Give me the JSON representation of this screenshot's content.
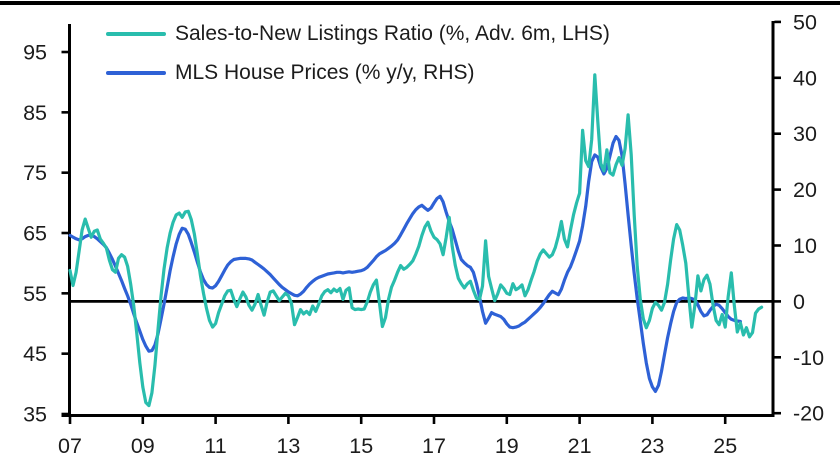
{
  "chart_data": {
    "type": "line",
    "legend_position": "top-left-inside",
    "grid": false,
    "baseline_rhs": 0,
    "x_axis": {
      "tick_years": [
        2007,
        2009,
        2011,
        2013,
        2015,
        2017,
        2019,
        2021,
        2023,
        2025
      ],
      "tick_labels": [
        "07",
        "09",
        "11",
        "13",
        "15",
        "17",
        "19",
        "21",
        "23",
        "25"
      ],
      "range": [
        2006.9,
        2026.35
      ]
    },
    "left_axis": {
      "ticks": [
        35,
        45,
        55,
        65,
        75,
        85,
        95
      ],
      "tick_labels": [
        "35",
        "45",
        "55",
        "65",
        "75",
        "85",
        "95"
      ]
    },
    "right_axis": {
      "ticks": [
        -20,
        -10,
        0,
        10,
        20,
        30,
        40,
        50
      ],
      "tick_labels": [
        "-20",
        "-10",
        "0",
        "10",
        "20",
        "30",
        "40",
        "50"
      ]
    },
    "series": [
      {
        "name": "MLS House Prices (% y/y, RHS)",
        "axis": "right",
        "color": "#2e61d6",
        "start_year": 2007.0,
        "points_per_year": 12,
        "values": [
          11.8,
          11.5,
          11.2,
          11.0,
          11.2,
          11.6,
          11.8,
          11.9,
          11.6,
          11.2,
          10.7,
          10.2,
          9.6,
          8.6,
          7.5,
          6.3,
          5.0,
          3.7,
          2.3,
          1.0,
          -0.5,
          -2.2,
          -3.8,
          -5.3,
          -6.8,
          -8.0,
          -8.9,
          -8.8,
          -7.8,
          -5.8,
          -3.2,
          -0.5,
          2.5,
          5.5,
          8.0,
          10.3,
          12.0,
          13.1,
          12.9,
          12.0,
          10.5,
          8.8,
          7.0,
          5.3,
          3.9,
          3.0,
          2.5,
          2.4,
          2.8,
          3.6,
          4.6,
          5.6,
          6.5,
          7.1,
          7.5,
          7.6,
          7.7,
          7.7,
          7.7,
          7.6,
          7.4,
          7.0,
          6.6,
          6.2,
          5.8,
          5.3,
          4.8,
          4.2,
          3.6,
          3.0,
          2.5,
          2.1,
          1.7,
          1.4,
          1.1,
          1.0,
          1.3,
          1.8,
          2.5,
          3.1,
          3.6,
          4.0,
          4.3,
          4.5,
          4.7,
          4.9,
          5.0,
          5.1,
          5.2,
          5.2,
          5.1,
          5.2,
          5.3,
          5.2,
          5.3,
          5.4,
          5.5,
          5.7,
          6.1,
          6.7,
          7.3,
          8.0,
          8.5,
          8.8,
          9.1,
          9.5,
          9.9,
          10.4,
          11.0,
          11.9,
          12.9,
          13.9,
          14.8,
          15.7,
          16.4,
          16.9,
          17.2,
          16.7,
          16.3,
          16.7,
          17.6,
          18.4,
          18.8,
          17.8,
          16.0,
          14.3,
          12.9,
          11.0,
          9.0,
          7.5,
          6.9,
          6.4,
          6.1,
          5.2,
          3.2,
          0.8,
          -1.8,
          -3.9,
          -3.0,
          -2.0,
          -2.3,
          -2.5,
          -2.7,
          -3.2,
          -4.0,
          -4.6,
          -4.7,
          -4.6,
          -4.4,
          -4.0,
          -3.7,
          -3.2,
          -2.7,
          -2.2,
          -1.7,
          -1.1,
          -0.4,
          0.4,
          1.2,
          1.8,
          1.5,
          1.2,
          2.2,
          3.8,
          5.2,
          6.2,
          7.6,
          9.2,
          10.8,
          13.5,
          17.0,
          21.5,
          25.0,
          26.2,
          25.8,
          24.0,
          22.8,
          23.8,
          26.0,
          28.3,
          29.5,
          28.8,
          26.0,
          21.0,
          15.5,
          10.0,
          5.0,
          0.5,
          -3.5,
          -7.5,
          -11.0,
          -13.8,
          -15.3,
          -16.1,
          -15.0,
          -12.5,
          -9.5,
          -6.5,
          -4.0,
          -1.8,
          -0.2,
          0.4,
          0.6,
          0.5,
          0.6,
          0.5,
          0.3,
          -0.6,
          -1.8,
          -2.6,
          -2.4,
          -1.6,
          -0.9,
          -0.5,
          -0.7,
          -1.3,
          -2.0,
          -2.7,
          -3.2,
          -3.4,
          -3.5,
          -3.6
        ]
      },
      {
        "name": "Sales-to-New Listings Ratio (%, Adv. 6m, LHS)",
        "axis": "left",
        "color": "#29bdad",
        "start_year": 2007.0,
        "points_per_year": 12,
        "values": [
          58.8,
          56.3,
          58.5,
          62.0,
          65.5,
          67.3,
          65.8,
          64.3,
          65.3,
          65.5,
          64.0,
          63.3,
          62.5,
          60.5,
          58.9,
          58.5,
          60.8,
          61.4,
          61.0,
          59.5,
          56.5,
          53.0,
          48.5,
          43.5,
          39.5,
          36.9,
          36.4,
          38.5,
          43.0,
          49.0,
          54.5,
          59.0,
          62.5,
          65.0,
          66.8,
          68.0,
          68.3,
          67.6,
          68.5,
          68.6,
          67.2,
          64.8,
          61.5,
          58.0,
          55.0,
          52.5,
          50.5,
          49.4,
          50.0,
          51.8,
          53.2,
          54.6,
          55.4,
          55.5,
          54.0,
          52.8,
          54.1,
          55.2,
          54.4,
          53.0,
          52.2,
          53.2,
          54.8,
          53.0,
          51.4,
          53.6,
          55.2,
          55.4,
          54.6,
          53.8,
          54.4,
          55.0,
          54.6,
          53.4,
          49.8,
          51.0,
          52.3,
          51.6,
          52.0,
          51.5,
          52.9,
          52.0,
          53.2,
          54.6,
          55.3,
          55.6,
          55.1,
          55.7,
          55.3,
          55.8,
          54.0,
          55.5,
          55.9,
          52.6,
          52.3,
          52.4,
          52.3,
          52.4,
          53.6,
          55.2,
          56.4,
          57.2,
          53.5,
          49.5,
          51.0,
          54.0,
          56.0,
          57.2,
          58.5,
          59.6,
          59.0,
          59.3,
          59.8,
          60.4,
          61.5,
          62.8,
          64.6,
          66.0,
          66.8,
          65.3,
          64.3,
          63.9,
          63.2,
          61.4,
          64.2,
          67.6,
          62.8,
          59.7,
          57.5,
          56.6,
          55.9,
          56.6,
          57.0,
          55.5,
          54.2,
          54.0,
          56.2,
          63.7,
          57.8,
          55.8,
          53.8,
          54.9,
          56.4,
          55.8,
          55.0,
          54.8,
          56.6,
          55.6,
          55.9,
          56.4,
          54.6,
          55.6,
          57.2,
          58.6,
          60.3,
          61.5,
          62.2,
          61.6,
          61.0,
          61.4,
          62.6,
          64.5,
          66.9,
          64.0,
          62.7,
          65.5,
          68.0,
          70.0,
          71.6,
          82.0,
          77.0,
          76.0,
          80.5,
          91.2,
          83.5,
          76.5,
          75.3,
          78.8,
          75.0,
          74.6,
          76.3,
          77.5,
          76.2,
          79.0,
          84.6,
          78.0,
          68.0,
          59.5,
          54.0,
          50.8,
          49.3,
          50.5,
          52.5,
          53.5,
          53.0,
          52.2,
          53.5,
          56.5,
          60.5,
          64.0,
          66.4,
          65.5,
          63.0,
          60.0,
          54.5,
          49.4,
          53.0,
          57.9,
          55.4,
          57.3,
          58.0,
          56.5,
          53.0,
          50.5,
          49.8,
          51.5,
          49.4,
          54.5,
          58.4,
          53.0,
          48.6,
          50.1,
          48.1,
          49.3,
          47.8,
          48.5,
          51.7,
          52.4,
          52.7
        ]
      }
    ]
  },
  "colors": {
    "teal": "#29bdad",
    "blue": "#2e61d6",
    "axis": "#000000",
    "text": "#1c1c1c",
    "background": "#ffffff"
  }
}
